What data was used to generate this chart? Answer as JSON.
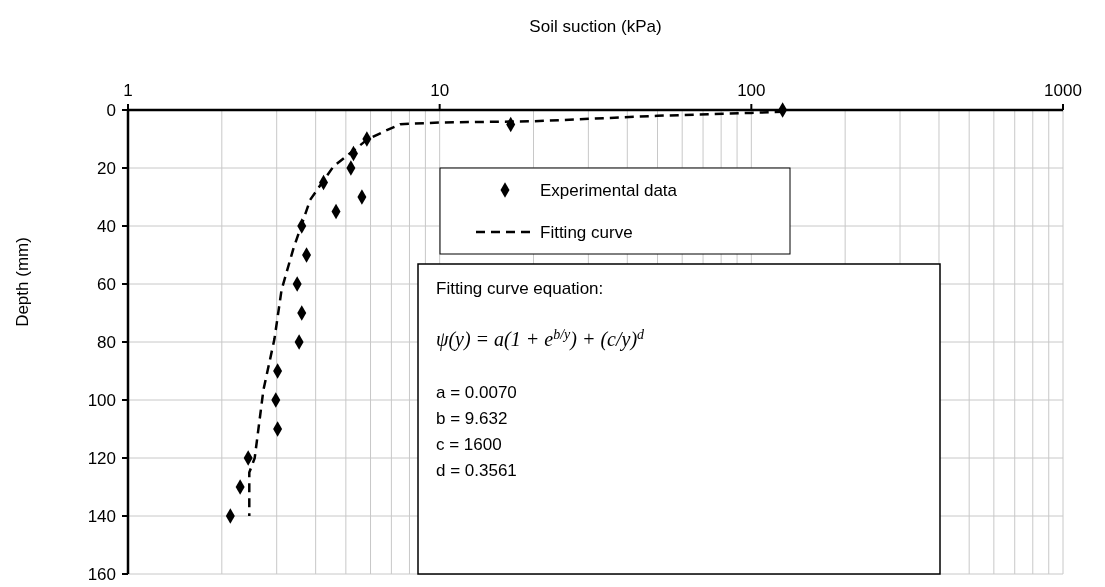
{
  "chart_data": {
    "type": "scatter",
    "xlabel": "Soil suction (kPa)",
    "ylabel": "Depth (mm)",
    "log": "x",
    "xlim": [
      1,
      1000
    ],
    "xticks": [
      1,
      10,
      100,
      1000
    ],
    "ylim": [
      160,
      0
    ],
    "yticks": [
      0,
      20,
      40,
      60,
      80,
      100,
      120,
      140,
      160
    ],
    "grid": true,
    "legend": "top",
    "series": [
      {
        "name": "Experimental data",
        "marker": "diamond",
        "color": "#000000",
        "x": [
          126,
          16.9,
          5.84,
          5.29,
          5.19,
          4.24,
          5.63,
          4.65,
          3.61,
          3.74,
          3.49,
          3.61,
          3.54,
          3.02,
          2.98,
          3.02,
          2.43,
          2.29,
          2.13
        ],
        "values": [
          0,
          5,
          10,
          15,
          20,
          25,
          30,
          35,
          40,
          50,
          60,
          70,
          80,
          90,
          100,
          110,
          120,
          130,
          140
        ]
      },
      {
        "name": "Fitting curve",
        "type": "line",
        "line_style": "dashed",
        "marker": "none",
        "color": "#000000",
        "x": [
          127,
          100,
          50,
          20,
          10,
          7.47,
          6.6,
          5.84,
          4.56,
          3.84,
          3.39,
          3.11,
          2.95,
          2.72,
          2.55,
          2.45,
          2.45
        ],
        "values": [
          0.6,
          1.0,
          2.0,
          3.9,
          4.3,
          4.9,
          7.5,
          10.3,
          19.5,
          31,
          48,
          62,
          79,
          96.5,
          120,
          125,
          140
        ]
      }
    ],
    "annotations": [
      "Fitting curve equation:",
      "ψ(y) = a(1 + e$^{b/y}$) + (c/y)$^{d}$",
      "a = 0.0070",
      "b = 9.632",
      "c = 1600",
      "d = 0.3561"
    ]
  }
}
